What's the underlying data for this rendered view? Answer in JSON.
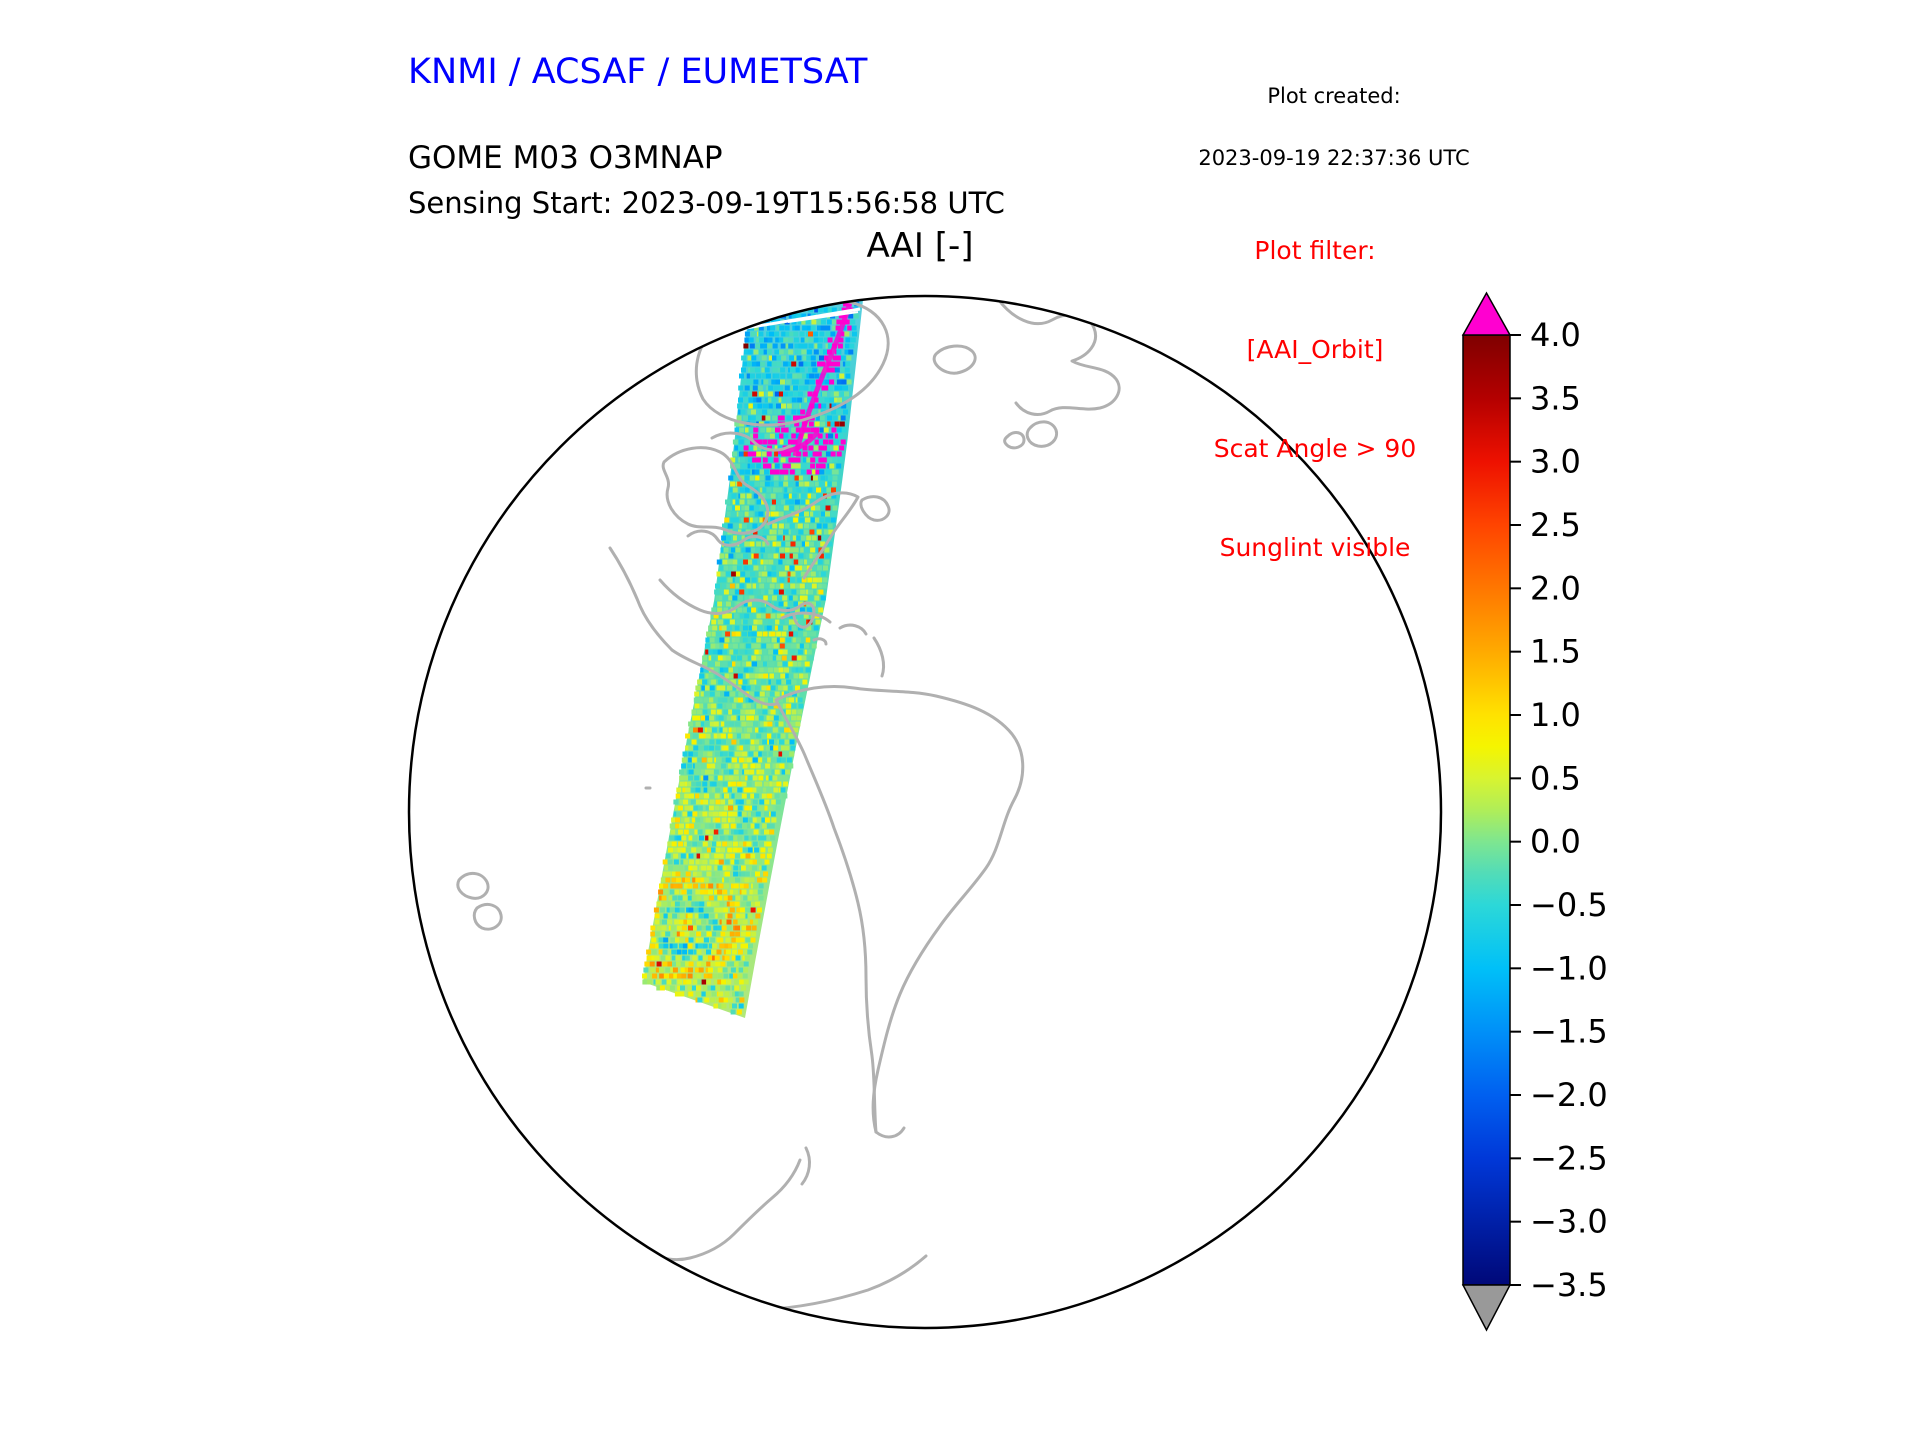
{
  "header": {
    "org_title": "KNMI / ACSAF / EUMETSAT",
    "created_label": "Plot created:",
    "created_time": "2023-09-19 22:37:36 UTC",
    "product_line1": "GOME M03 O3MNAP",
    "product_line2": "Sensing Start: 2023-09-19T15:56:58 UTC",
    "plot_title": "AAI [-]"
  },
  "filter": {
    "line1": "Plot filter:",
    "line2": "[AAI_Orbit]",
    "line3": "Scat Angle > 90",
    "line4": "Sunglint visible"
  },
  "colors": {
    "title_blue": "#0000ff",
    "filter_red": "#ff0000",
    "coastline_gray": "#b0b0b0",
    "globe_outline": "#000000"
  },
  "colorbar": {
    "tick_labels": [
      "4.0",
      "3.5",
      "3.0",
      "2.5",
      "2.0",
      "1.5",
      "1.0",
      "0.5",
      "0.0",
      "−0.5",
      "−1.0",
      "−1.5",
      "−2.0",
      "−2.5",
      "−3.0",
      "−3.5"
    ],
    "over_color": "#ff00d0",
    "under_color": "#999999"
  },
  "colormap": [
    {
      "v": -3.5,
      "c": "#000878"
    },
    {
      "v": -3.0,
      "c": "#0020a8"
    },
    {
      "v": -2.5,
      "c": "#0038d8"
    },
    {
      "v": -2.0,
      "c": "#0060f0"
    },
    {
      "v": -1.5,
      "c": "#0090f8"
    },
    {
      "v": -1.0,
      "c": "#00c0f8"
    },
    {
      "v": -0.5,
      "c": "#2cd8d8"
    },
    {
      "v": -0.25,
      "c": "#52dcb8"
    },
    {
      "v": 0.0,
      "c": "#7ee690"
    },
    {
      "v": 0.25,
      "c": "#b0ee58"
    },
    {
      "v": 0.5,
      "c": "#d8f430"
    },
    {
      "v": 0.75,
      "c": "#f5f500"
    },
    {
      "v": 1.0,
      "c": "#ffe200"
    },
    {
      "v": 1.5,
      "c": "#ffaa00"
    },
    {
      "v": 2.0,
      "c": "#ff7700"
    },
    {
      "v": 2.5,
      "c": "#ff4400"
    },
    {
      "v": 3.0,
      "c": "#ee1100"
    },
    {
      "v": 3.5,
      "c": "#b40000"
    },
    {
      "v": 4.0,
      "c": "#7f0000"
    }
  ],
  "chart_data": {
    "type": "heatmap",
    "title": "AAI [-]",
    "subtitle": "GOME M03 O3MNAP — Sensing Start: 2023-09-19T15:56:58 UTC",
    "source": "KNMI / ACSAF / EUMETSAT",
    "created": "2023-09-19 22:37:36 UTC",
    "projection": "orthographic globe centered on the Americas / North Atlantic",
    "colorbar": {
      "label": "AAI [-]",
      "range": [
        -3.5,
        4.0
      ],
      "tick_step": 0.5,
      "ticks": [
        4.0,
        3.5,
        3.0,
        2.5,
        2.0,
        1.5,
        1.0,
        0.5,
        0.0,
        -0.5,
        -1.0,
        -1.5,
        -2.0,
        -2.5,
        -3.0,
        -3.5
      ],
      "over_arrow": "magenta",
      "under_arrow": "gray",
      "orientation": "vertical",
      "position": "right"
    },
    "series_description": "Single descending satellite orbit swath of Absorbing Aerosol Index values, running from the Arctic near Greenland south across eastern North America, the Caribbean and western South America to the Southern Ocean. Most pixels lie between about -1.5 and +1.0 (cyan-green-yellow); scattered hot pixels reach ~2-3.5 (orange-red); sunglint-flagged pixels near Hudson Bay / Great Lakes and along the northern coast are drawn in magenta; a cyclonic swirl pattern is visible near the southern end of the swath.",
    "annotations": [
      "Plot filter:",
      "[AAI_Orbit]",
      "Scat Angle > 90",
      "Sunglint visible"
    ],
    "grid": false
  }
}
